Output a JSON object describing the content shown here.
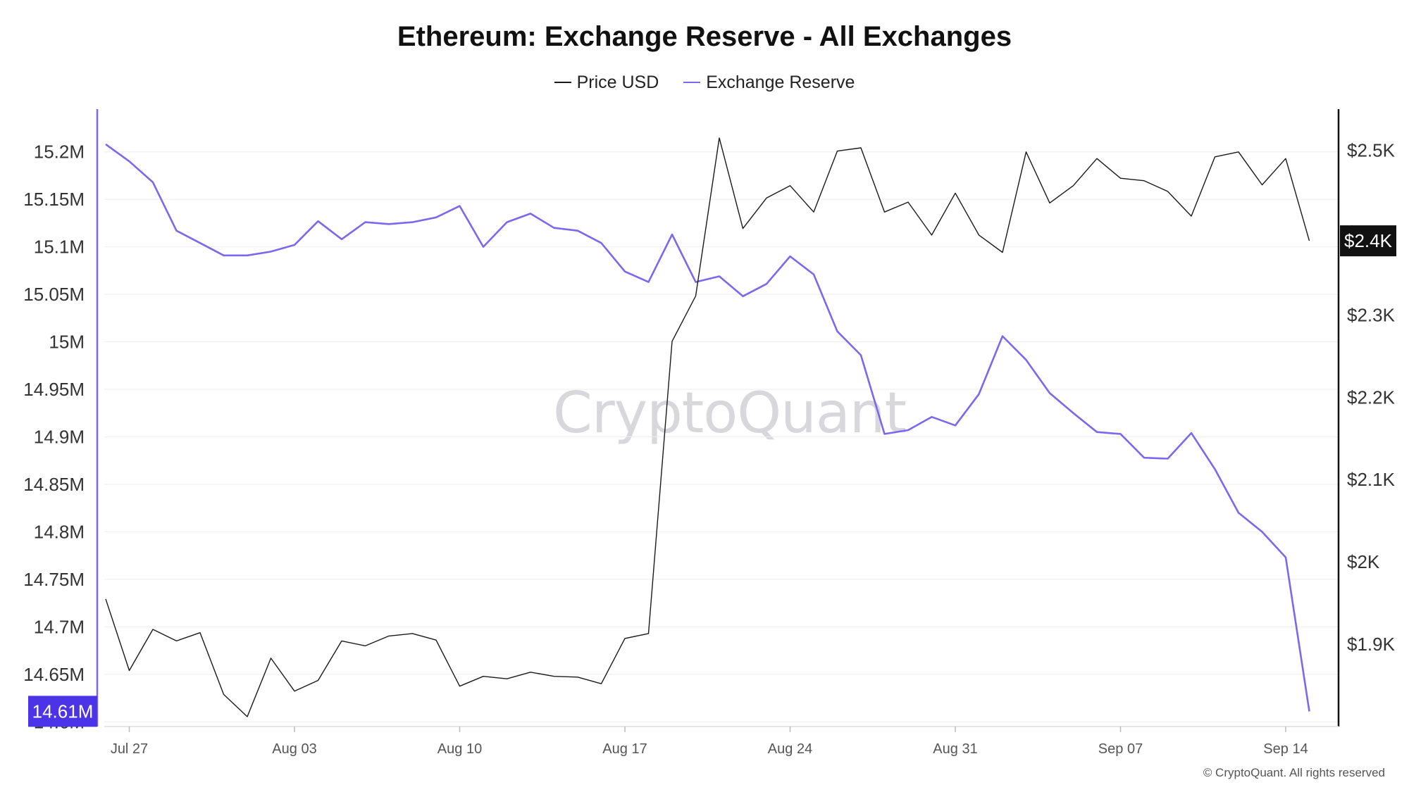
{
  "title": "Ethereum: Exchange Reserve - All Exchanges",
  "legend": {
    "price_label": "Price USD",
    "reserve_label": "Exchange Reserve"
  },
  "watermark": "CryptoQuant",
  "copyright": "© CryptoQuant. All rights reserved",
  "colors": {
    "price": "#1a1a1a",
    "reserve": "#7b68ee",
    "reserve_badge": "#4b33e8",
    "price_badge": "#111111",
    "grid": "#eeeeee"
  },
  "chart_data": {
    "type": "line",
    "title": "Ethereum: Exchange Reserve - All Exchanges",
    "x_ticks": [
      "Jul 27",
      "Aug 03",
      "Aug 10",
      "Aug 17",
      "Aug 24",
      "Aug 31",
      "Sep 07",
      "Sep 14"
    ],
    "x_start": "Jul 26",
    "y_left": {
      "ticks": [
        "14.6M",
        "14.65M",
        "14.7M",
        "14.75M",
        "14.8M",
        "14.85M",
        "14.9M",
        "14.95M",
        "15M",
        "15.05M",
        "15.1M",
        "15.15M",
        "15.2M"
      ],
      "range": [
        14.595,
        15.245
      ],
      "current_label": "14.61M"
    },
    "y_right": {
      "ticks": [
        "$1.9K",
        "$2K",
        "$2.1K",
        "$2.2K",
        "$2.3K",
        "$2.4K",
        "$2.5K"
      ],
      "range": [
        1800,
        2550
      ],
      "current_label": "$2.4K"
    },
    "grid": true,
    "legend_position": "top-center",
    "series": [
      {
        "name": "Exchange Reserve",
        "axis": "left",
        "values": [
          15.208,
          15.19,
          15.168,
          15.117,
          15.104,
          15.091,
          15.091,
          15.095,
          15.102,
          15.127,
          15.108,
          15.126,
          15.124,
          15.126,
          15.131,
          15.143,
          15.1,
          15.126,
          15.135,
          15.12,
          15.117,
          15.104,
          15.074,
          15.063,
          15.113,
          15.063,
          15.069,
          15.048,
          15.061,
          15.09,
          15.071,
          15.011,
          14.986,
          14.903,
          14.907,
          14.921,
          14.912,
          14.945,
          15.006,
          14.981,
          14.946,
          14.925,
          14.905,
          14.903,
          14.878,
          14.877,
          14.904,
          14.866,
          14.82,
          14.8,
          14.773,
          14.611
        ]
      },
      {
        "name": "Price USD",
        "axis": "right",
        "values": [
          1955,
          1868,
          1918,
          1904,
          1914,
          1839,
          1812,
          1883,
          1843,
          1856,
          1904,
          1898,
          1910,
          1913,
          1905,
          1849,
          1861,
          1858,
          1866,
          1861,
          1860,
          1852,
          1907,
          1913,
          2268,
          2323,
          2515,
          2405,
          2442,
          2457,
          2425,
          2499,
          2503,
          2425,
          2437,
          2397,
          2448,
          2397,
          2376,
          2498,
          2436,
          2457,
          2490,
          2466,
          2463,
          2450,
          2420,
          2492,
          2498,
          2458,
          2490,
          2390
        ]
      }
    ]
  }
}
